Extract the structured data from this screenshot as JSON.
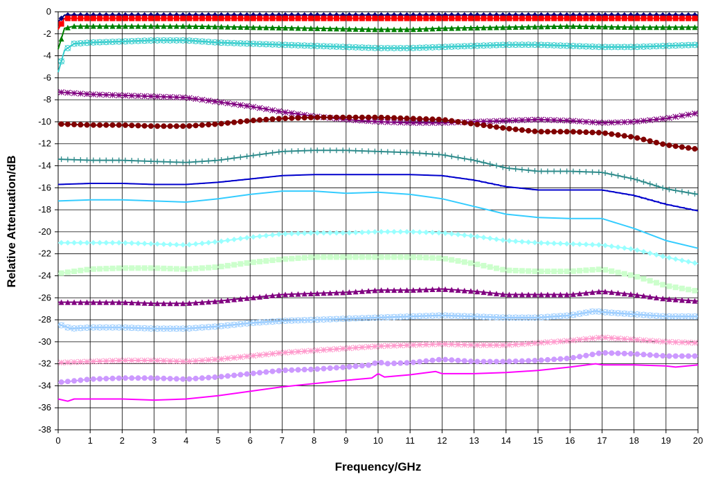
{
  "chart_data": {
    "type": "line",
    "xlabel": "Frequency/GHz",
    "ylabel": "Relative Attenuation/dB",
    "xlim": [
      0,
      20
    ],
    "ylim": [
      -38,
      0
    ],
    "xticks": [
      0,
      1,
      2,
      3,
      4,
      5,
      6,
      7,
      8,
      9,
      10,
      11,
      12,
      13,
      14,
      15,
      16,
      17,
      18,
      19,
      20
    ],
    "yticks": [
      0,
      -2,
      -4,
      -6,
      -8,
      -10,
      -12,
      -14,
      -16,
      -18,
      -20,
      -22,
      -24,
      -26,
      -28,
      -30,
      -32,
      -34,
      -36,
      -38
    ],
    "grid": true,
    "series": [
      {
        "color": "#000080",
        "marker": "diamond",
        "x": [
          0,
          0.2,
          1,
          3,
          5,
          7,
          9,
          10,
          12,
          14,
          16,
          18,
          20
        ],
        "values": [
          -0.9,
          -0.3,
          -0.3,
          -0.3,
          -0.3,
          -0.3,
          -0.3,
          -0.3,
          -0.3,
          -0.3,
          -0.3,
          -0.3,
          -0.3
        ]
      },
      {
        "color": "#ff0000",
        "marker": "square",
        "x": [
          0,
          0.2,
          1,
          3,
          5,
          7,
          9,
          10,
          12,
          14,
          16,
          18,
          20
        ],
        "values": [
          -1.6,
          -0.6,
          -0.6,
          -0.6,
          -0.6,
          -0.6,
          -0.6,
          -0.6,
          -0.6,
          -0.6,
          -0.6,
          -0.6,
          -0.6
        ]
      },
      {
        "color": "#008000",
        "marker": "triangle",
        "x": [
          0,
          0.2,
          0.5,
          2,
          4,
          6,
          8,
          10,
          11,
          12,
          14,
          16,
          18,
          20
        ],
        "values": [
          -3.4,
          -1.5,
          -1.3,
          -1.3,
          -1.3,
          -1.4,
          -1.5,
          -1.6,
          -1.6,
          -1.5,
          -1.4,
          -1.3,
          -1.4,
          -1.4
        ]
      },
      {
        "color": "#33cccc",
        "marker": "x-circle",
        "x": [
          0,
          0.2,
          0.5,
          1,
          2,
          3,
          4,
          5,
          6,
          7,
          8,
          9,
          10,
          11,
          12,
          13,
          14,
          15,
          16,
          17,
          18,
          19,
          20
        ],
        "values": [
          -5.5,
          -3.5,
          -2.9,
          -2.8,
          -2.7,
          -2.6,
          -2.6,
          -2.8,
          -2.9,
          -3.0,
          -3.1,
          -3.2,
          -3.3,
          -3.3,
          -3.2,
          -3.1,
          -3.0,
          -3.0,
          -3.1,
          -3.2,
          -3.2,
          -3.1,
          -3.0
        ]
      },
      {
        "color": "#800080",
        "marker": "asterisk",
        "x": [
          0,
          1,
          2,
          3,
          4,
          5,
          6,
          7,
          8,
          9,
          10,
          11,
          12,
          13,
          14,
          15,
          16,
          17,
          18,
          19,
          20
        ],
        "values": [
          -7.3,
          -7.5,
          -7.6,
          -7.7,
          -7.8,
          -8.2,
          -8.6,
          -9.1,
          -9.5,
          -9.8,
          -10.0,
          -10.1,
          -10.1,
          -10.0,
          -9.9,
          -9.8,
          -9.9,
          -10.1,
          -10.0,
          -9.7,
          -9.2
        ]
      },
      {
        "color": "#800000",
        "marker": "circle",
        "x": [
          0,
          1,
          2,
          3,
          4,
          5,
          6,
          7,
          8,
          9,
          10,
          11,
          12,
          13,
          14,
          15,
          16,
          17,
          18,
          19,
          20
        ],
        "values": [
          -10.2,
          -10.3,
          -10.3,
          -10.4,
          -10.4,
          -10.2,
          -9.9,
          -9.7,
          -9.6,
          -9.6,
          -9.6,
          -9.7,
          -9.8,
          -10.2,
          -10.6,
          -10.9,
          -10.9,
          -11.0,
          -11.4,
          -12.1,
          -12.5
        ]
      },
      {
        "color": "#2e8b8b",
        "marker": "plus",
        "x": [
          0,
          1,
          2,
          3,
          4,
          5,
          6,
          7,
          8,
          9,
          10,
          11,
          12,
          13,
          14,
          15,
          16,
          17,
          18,
          19,
          20
        ],
        "values": [
          -13.4,
          -13.5,
          -13.5,
          -13.6,
          -13.7,
          -13.5,
          -13.1,
          -12.7,
          -12.6,
          -12.6,
          -12.7,
          -12.8,
          -13.0,
          -13.5,
          -14.2,
          -14.5,
          -14.5,
          -14.6,
          -15.2,
          -16.1,
          -16.6
        ]
      },
      {
        "color": "#0000cc",
        "marker": "dash",
        "x": [
          0,
          1,
          2,
          3,
          4,
          5,
          6,
          7,
          8,
          9,
          10,
          11,
          12,
          13,
          14,
          15,
          16,
          17,
          18,
          19,
          20
        ],
        "values": [
          -15.7,
          -15.6,
          -15.6,
          -15.7,
          -15.7,
          -15.5,
          -15.2,
          -14.9,
          -14.8,
          -14.8,
          -14.8,
          -14.8,
          -14.9,
          -15.3,
          -15.9,
          -16.2,
          -16.2,
          -16.2,
          -16.7,
          -17.5,
          -18.1
        ]
      },
      {
        "color": "#33ccff",
        "marker": "none",
        "x": [
          0,
          1,
          2,
          3,
          4,
          5,
          6,
          7,
          8,
          9,
          10,
          11,
          12,
          13,
          14,
          15,
          16,
          17,
          18,
          19,
          20
        ],
        "values": [
          -17.2,
          -17.1,
          -17.1,
          -17.2,
          -17.3,
          -17.0,
          -16.6,
          -16.3,
          -16.3,
          -16.5,
          -16.4,
          -16.6,
          -17.0,
          -17.7,
          -18.4,
          -18.7,
          -18.8,
          -18.8,
          -19.7,
          -20.8,
          -21.5
        ]
      },
      {
        "color": "#99ffff",
        "marker": "diamond",
        "x": [
          0,
          1,
          2,
          3,
          4,
          5,
          6,
          7,
          8,
          9,
          10,
          11,
          12,
          13,
          14,
          15,
          16,
          17,
          18,
          19,
          20
        ],
        "values": [
          -21.0,
          -21.0,
          -21.0,
          -21.1,
          -21.2,
          -20.9,
          -20.5,
          -20.2,
          -20.1,
          -20.1,
          -20.0,
          -20.0,
          -20.1,
          -20.4,
          -20.8,
          -21.0,
          -21.1,
          -21.2,
          -21.6,
          -22.3,
          -22.9
        ]
      },
      {
        "color": "#ccffcc",
        "marker": "square",
        "x": [
          0,
          1,
          2,
          3,
          4,
          5,
          6,
          7,
          8,
          9,
          10,
          11,
          12,
          13,
          14,
          15,
          16,
          17,
          18,
          19,
          20
        ],
        "values": [
          -23.8,
          -23.4,
          -23.3,
          -23.3,
          -23.4,
          -23.2,
          -22.8,
          -22.5,
          -22.3,
          -22.3,
          -22.3,
          -22.3,
          -22.4,
          -22.9,
          -23.5,
          -23.6,
          -23.6,
          -23.4,
          -24.0,
          -24.9,
          -25.4
        ]
      },
      {
        "color": "#800080",
        "marker": "triangle",
        "x": [
          0,
          1,
          2,
          3,
          4,
          5,
          6,
          7,
          8,
          9,
          10,
          11,
          12,
          13,
          14,
          15,
          16,
          17,
          18,
          19,
          20
        ],
        "values": [
          -26.4,
          -26.4,
          -26.4,
          -26.5,
          -26.5,
          -26.3,
          -26.0,
          -25.7,
          -25.6,
          -25.5,
          -25.3,
          -25.3,
          -25.2,
          -25.4,
          -25.7,
          -25.7,
          -25.7,
          -25.4,
          -25.7,
          -26.1,
          -26.3
        ]
      },
      {
        "color": "#99ccff",
        "marker": "x-circle",
        "x": [
          0,
          0.4,
          1,
          2,
          3,
          4,
          5,
          6,
          7,
          8,
          9,
          10,
          11,
          12,
          13,
          14,
          15,
          16,
          16.8,
          17,
          18,
          19,
          20
        ],
        "values": [
          -28.4,
          -28.8,
          -28.7,
          -28.7,
          -28.8,
          -28.8,
          -28.6,
          -28.3,
          -28.1,
          -28.0,
          -27.9,
          -27.8,
          -27.7,
          -27.6,
          -27.7,
          -27.8,
          -27.8,
          -27.6,
          -27.2,
          -27.3,
          -27.5,
          -27.7,
          -27.7
        ]
      },
      {
        "color": "#ff99cc",
        "marker": "asterisk",
        "x": [
          0,
          1,
          2,
          3,
          4,
          5,
          6,
          7,
          8,
          9,
          10,
          11,
          12,
          13,
          14,
          15,
          16,
          17,
          18,
          19,
          20
        ],
        "values": [
          -31.9,
          -31.8,
          -31.7,
          -31.7,
          -31.8,
          -31.6,
          -31.3,
          -31.0,
          -30.8,
          -30.6,
          -30.4,
          -30.3,
          -30.2,
          -30.3,
          -30.3,
          -30.1,
          -29.9,
          -29.6,
          -29.8,
          -30.0,
          -30.1
        ]
      },
      {
        "color": "#cc99ff",
        "marker": "circle",
        "x": [
          0,
          1,
          2,
          3,
          4,
          5,
          6,
          7,
          8,
          9,
          9.8,
          10,
          10.2,
          11,
          12,
          13,
          14,
          15,
          16,
          17,
          18,
          19,
          20
        ],
        "values": [
          -33.7,
          -33.4,
          -33.3,
          -33.3,
          -33.4,
          -33.2,
          -32.9,
          -32.6,
          -32.5,
          -32.3,
          -32.1,
          -31.8,
          -32.0,
          -31.9,
          -31.6,
          -31.8,
          -31.8,
          -31.7,
          -31.5,
          -31.0,
          -31.1,
          -31.3,
          -31.3
        ]
      },
      {
        "color": "#ff00ff",
        "marker": "none",
        "x": [
          0,
          0.3,
          0.5,
          1,
          2,
          3,
          4,
          5,
          6,
          7,
          8,
          9,
          9.8,
          10,
          10.2,
          11,
          11.8,
          12,
          13,
          14,
          15,
          16,
          16.8,
          17,
          18,
          19,
          19.3,
          20
        ],
        "values": [
          -35.2,
          -35.4,
          -35.2,
          -35.2,
          -35.2,
          -35.3,
          -35.2,
          -34.9,
          -34.5,
          -34.1,
          -33.8,
          -33.5,
          -33.3,
          -32.9,
          -33.2,
          -33.0,
          -32.7,
          -32.9,
          -32.9,
          -32.8,
          -32.6,
          -32.3,
          -32.0,
          -32.1,
          -32.1,
          -32.2,
          -32.3,
          -32.1
        ]
      }
    ]
  }
}
